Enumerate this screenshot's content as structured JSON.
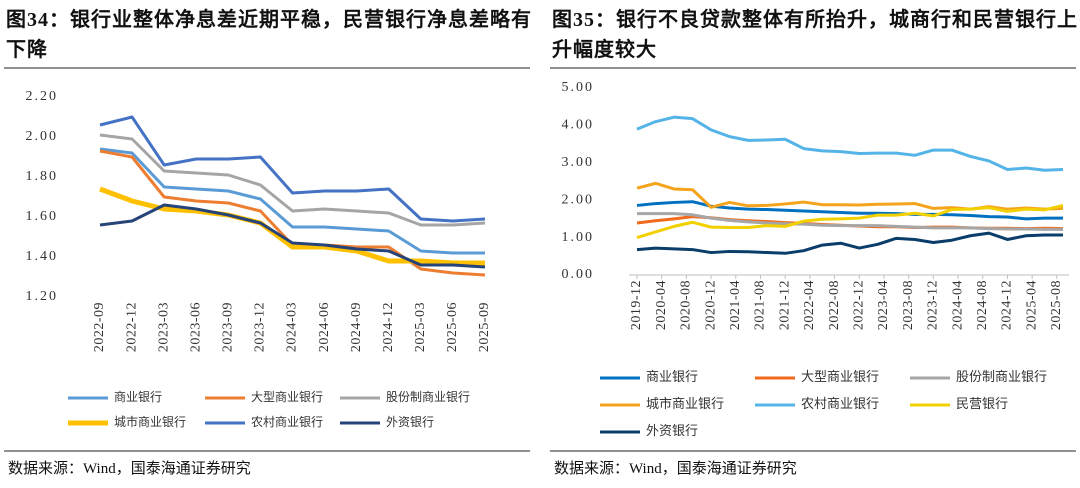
{
  "chart_data": [
    {
      "type": "line",
      "title": "图34：银行业整体净息差近期平稳，民营银行净息差略有下降",
      "categories": [
        "2022-09",
        "2022-12",
        "2023-03",
        "2023-06",
        "2023-09",
        "2023-12",
        "2024-03",
        "2024-06",
        "2024-09",
        "2024-12",
        "2025-03",
        "2025-06",
        "2025-09"
      ],
      "ylim": [
        1.2,
        2.2
      ],
      "yticks": [
        {
          "value": 1.2,
          "label": "1.20"
        },
        {
          "value": 1.4,
          "label": "1.40"
        },
        {
          "value": 1.6,
          "label": "1.60"
        },
        {
          "value": 1.8,
          "label": "1.80"
        },
        {
          "value": 2.0,
          "label": "2.00"
        },
        {
          "value": 2.2,
          "label": "2.20"
        }
      ],
      "grid": false,
      "legend": "bottom",
      "series": [
        {
          "name": "商业银行",
          "color": "#5b9bd5",
          "values": [
            1.94,
            1.92,
            1.75,
            1.74,
            1.73,
            1.69,
            1.55,
            1.55,
            1.54,
            1.53,
            1.43,
            1.42,
            1.42
          ]
        },
        {
          "name": "大型商业银行",
          "color": "#ed7d31",
          "values": [
            1.93,
            1.9,
            1.7,
            1.68,
            1.67,
            1.63,
            1.46,
            1.46,
            1.45,
            1.45,
            1.34,
            1.32,
            1.31
          ]
        },
        {
          "name": "股份制商业银行",
          "color": "#a5a5a5",
          "values": [
            2.01,
            1.99,
            1.83,
            1.82,
            1.81,
            1.76,
            1.63,
            1.64,
            1.63,
            1.62,
            1.56,
            1.56,
            1.57
          ]
        },
        {
          "name": "城市商业银行",
          "color": "#ffc000",
          "values": [
            1.74,
            1.68,
            1.64,
            1.63,
            1.61,
            1.57,
            1.45,
            1.45,
            1.43,
            1.38,
            1.38,
            1.37,
            1.37
          ]
        },
        {
          "name": "农村商业银行",
          "color": "#4472c4",
          "values": [
            2.06,
            2.1,
            1.86,
            1.89,
            1.89,
            1.9,
            1.72,
            1.73,
            1.73,
            1.74,
            1.59,
            1.58,
            1.59
          ]
        },
        {
          "name": "外资银行",
          "color": "#264478",
          "values": [
            1.56,
            1.58,
            1.66,
            1.64,
            1.61,
            1.57,
            1.47,
            1.46,
            1.44,
            1.43,
            1.36,
            1.36,
            1.35
          ]
        }
      ]
    },
    {
      "type": "line",
      "title": "图35：银行不良贷款整体有所抬升，城商行和民营银行上升幅度较大",
      "x": [
        "2019-12",
        "2020-03",
        "2020-06",
        "2020-09",
        "2020-12",
        "2021-03",
        "2021-06",
        "2021-09",
        "2021-12",
        "2022-03",
        "2022-06",
        "2022-09",
        "2022-12",
        "2023-03",
        "2023-06",
        "2023-09",
        "2023-12",
        "2024-03",
        "2024-06",
        "2024-09",
        "2024-12",
        "2025-03",
        "2025-06",
        "2025-09"
      ],
      "xlim": [
        "2019-12",
        "2025-09"
      ],
      "xticks": [
        "2019-12",
        "2020-04",
        "2020-08",
        "2020-12",
        "2021-04",
        "2021-08",
        "2021-12",
        "2022-04",
        "2022-08",
        "2022-12",
        "2023-04",
        "2023-08",
        "2023-12",
        "2024-04",
        "2024-08",
        "2024-12",
        "2025-04",
        "2025-08"
      ],
      "ylim": [
        0,
        5
      ],
      "yticks": [
        {
          "value": 0,
          "label": "0.00"
        },
        {
          "value": 1,
          "label": "1.00"
        },
        {
          "value": 2,
          "label": "2.00"
        },
        {
          "value": 3,
          "label": "3.00"
        },
        {
          "value": 4,
          "label": "4.00"
        },
        {
          "value": 5,
          "label": "5.00"
        }
      ],
      "grid": false,
      "legend": "bottom",
      "series": [
        {
          "name": "商业银行",
          "color": "#0070c0",
          "values": [
            1.86,
            1.91,
            1.94,
            1.96,
            1.84,
            1.79,
            1.76,
            1.75,
            1.73,
            1.71,
            1.69,
            1.67,
            1.65,
            1.65,
            1.64,
            1.62,
            1.62,
            1.61,
            1.59,
            1.56,
            1.55,
            1.5,
            1.52,
            1.52
          ]
        },
        {
          "name": "大型商业银行",
          "color": "#f26b1d",
          "values": [
            1.39,
            1.45,
            1.5,
            1.56,
            1.53,
            1.48,
            1.45,
            1.43,
            1.4,
            1.38,
            1.35,
            1.33,
            1.31,
            1.29,
            1.29,
            1.27,
            1.28,
            1.28,
            1.26,
            1.25,
            1.25,
            1.24,
            1.25,
            1.24
          ]
        },
        {
          "name": "股份制商业银行",
          "color": "#a6a6a6",
          "values": [
            1.64,
            1.64,
            1.64,
            1.61,
            1.52,
            1.46,
            1.42,
            1.39,
            1.37,
            1.36,
            1.33,
            1.32,
            1.32,
            1.32,
            1.3,
            1.28,
            1.26,
            1.26,
            1.26,
            1.24,
            1.23,
            1.23,
            1.22,
            1.22
          ]
        },
        {
          "name": "城市商业银行",
          "color": "#f5a31a",
          "values": [
            2.32,
            2.45,
            2.3,
            2.28,
            1.81,
            1.94,
            1.85,
            1.86,
            1.9,
            1.95,
            1.88,
            1.88,
            1.87,
            1.89,
            1.9,
            1.91,
            1.78,
            1.8,
            1.76,
            1.83,
            1.76,
            1.79,
            1.76,
            1.78
          ]
        },
        {
          "name": "农村商业银行",
          "color": "#54b4e8",
          "values": [
            3.9,
            4.1,
            4.22,
            4.18,
            3.88,
            3.7,
            3.6,
            3.61,
            3.63,
            3.38,
            3.32,
            3.3,
            3.25,
            3.26,
            3.26,
            3.2,
            3.34,
            3.34,
            3.17,
            3.05,
            2.82,
            2.86,
            2.8,
            2.82
          ]
        },
        {
          "name": "民营银行",
          "color": "#f2d000",
          "values": [
            1.0,
            1.15,
            1.3,
            1.41,
            1.28,
            1.27,
            1.27,
            1.32,
            1.3,
            1.44,
            1.49,
            1.5,
            1.52,
            1.6,
            1.6,
            1.65,
            1.58,
            1.75,
            1.76,
            1.8,
            1.7,
            1.76,
            1.74,
            1.86
          ]
        },
        {
          "name": "外资银行",
          "color": "#0b3d6b",
          "values": [
            0.68,
            0.72,
            0.7,
            0.68,
            0.6,
            0.63,
            0.62,
            0.6,
            0.58,
            0.65,
            0.8,
            0.85,
            0.72,
            0.82,
            0.98,
            0.95,
            0.87,
            0.93,
            1.05,
            1.12,
            0.95,
            1.05,
            1.07,
            1.07
          ]
        }
      ]
    }
  ],
  "sources": [
    "数据来源：Wind，国泰海通证券研究",
    "数据来源：Wind，国泰海通证券研究"
  ]
}
